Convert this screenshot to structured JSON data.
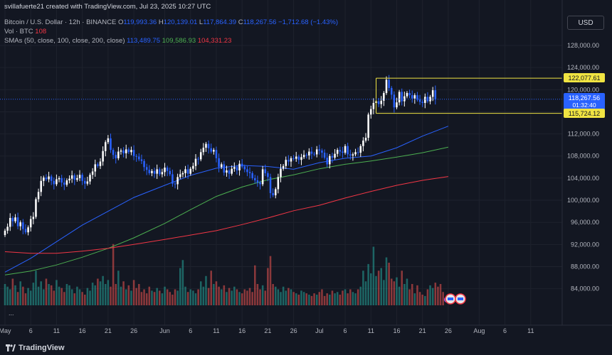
{
  "header": {
    "created_by": "svillafuerte21 created with TradingView.com, Jul 23, 2025 10:27 UTC",
    "symbol": "Bitcoin / U.S. Dollar · 12h · BINANCE",
    "ohlc": {
      "o_label": "O",
      "o": "119,993.36",
      "h_label": "H",
      "h": "120,139.01",
      "l_label": "L",
      "l": "117,864.39",
      "c_label": "C",
      "c": "118,267.56",
      "change": "−1,712.68 (−1.43%)"
    },
    "volume": {
      "label": "Vol · BTC",
      "value": "108"
    },
    "smas": {
      "label": "SMAs (50, close, 100, close, 200, close)",
      "sma50": "113,489.75",
      "sma100": "109,586.93",
      "sma200": "104,331.23"
    }
  },
  "currency_button": "USD",
  "collapse_dots": "...",
  "branding": "TradingView",
  "price_labels": {
    "level_high": "122,077.61",
    "current": "118,267.56",
    "countdown": "01:32:40",
    "level_low": "115,724.12"
  },
  "colors": {
    "background": "#131722",
    "up": "#ffffff",
    "down": "#2962ff",
    "sma50": "#2962ff",
    "sma100": "#4caf50",
    "sma200": "#f23645",
    "level": "#f0e442",
    "vol_up": "#26a69a",
    "vol_down": "#ef5350"
  },
  "chart_data": {
    "type": "candlestick",
    "ylim": [
      80000,
      130000
    ],
    "y_ticks": [
      84000,
      88000,
      92000,
      96000,
      100000,
      104000,
      108000,
      112000,
      116000,
      120000,
      124000,
      128000
    ],
    "y_tick_labels": [
      "84,000.00",
      "88,000.00",
      "92,000.00",
      "96,000.00",
      "100,000.00",
      "104,000.00",
      "108,000.00",
      "112,000.00",
      "116,000.00",
      "120,000.00",
      "124,000.00",
      "128,000.00"
    ],
    "x_tick_labels": [
      "May",
      "6",
      "11",
      "16",
      "21",
      "26",
      "Jun",
      "6",
      "11",
      "16",
      "21",
      "26",
      "Jul",
      "6",
      "11",
      "16",
      "21",
      "26",
      "Aug",
      "6",
      "11"
    ],
    "x_tick_days": [
      0,
      5,
      10,
      15,
      20,
      25,
      31,
      36,
      41,
      46,
      51,
      56,
      61,
      66,
      71,
      76,
      81,
      86,
      92,
      97,
      102
    ],
    "day_range": [
      0,
      107
    ],
    "levels": [
      122077.61,
      115724.12
    ],
    "level_range_days": [
      72,
      82
    ],
    "candles": {
      "day_start": 0,
      "step_days": 0.5,
      "closes": [
        94500,
        95200,
        96800,
        96200,
        96900,
        95300,
        96000,
        94800,
        94200,
        95100,
        96600,
        97000,
        100200,
        101500,
        103500,
        104100,
        103800,
        104300,
        103500,
        102900,
        103800,
        104000,
        103200,
        102800,
        103600,
        103900,
        104500,
        103700,
        104000,
        104600,
        103500,
        103000,
        103400,
        104600,
        105200,
        106500,
        106200,
        107000,
        108900,
        110500,
        111200,
        109100,
        108200,
        107600,
        108800,
        109000,
        108500,
        109200,
        108700,
        109100,
        108000,
        107900,
        107400,
        107100,
        106000,
        105500,
        104900,
        105300,
        104800,
        105600,
        104700,
        105100,
        105900,
        105300,
        104700,
        103000,
        102900,
        104200,
        104700,
        104900,
        105600,
        104800,
        105700,
        106200,
        107500,
        107400,
        108700,
        109500,
        110200,
        109400,
        108800,
        109100,
        107600,
        106000,
        106500,
        105000,
        105400,
        104800,
        105700,
        106000,
        105400,
        106600,
        106100,
        105600,
        105100,
        104900,
        104000,
        103600,
        103200,
        102900,
        105600,
        104900,
        104200,
        101300,
        100900,
        102000,
        104200,
        105700,
        106200,
        107300,
        107000,
        107600,
        107500,
        107900,
        107300,
        107800,
        108200,
        108100,
        108800,
        108400,
        108300,
        109200,
        109000,
        108600,
        107700,
        106500,
        108000,
        107700,
        108400,
        109100,
        108800,
        108600,
        109800,
        108300,
        108100,
        108300,
        108700,
        108600,
        109800,
        110800,
        111300,
        115500,
        116500,
        117600,
        117900,
        117400,
        118000,
        119400,
        121800,
        120300,
        119100,
        116800,
        117700,
        119600,
        117900,
        118800,
        119400,
        119000,
        118400,
        119000,
        118200,
        117800,
        117600,
        118700,
        117900,
        118700,
        119900,
        118268
      ]
    },
    "sma50": [
      [
        0,
        87000
      ],
      [
        5,
        89500
      ],
      [
        10,
        92500
      ],
      [
        15,
        95500
      ],
      [
        20,
        98000
      ],
      [
        25,
        100500
      ],
      [
        31,
        102700
      ],
      [
        36,
        104500
      ],
      [
        41,
        105800
      ],
      [
        46,
        106300
      ],
      [
        51,
        106100
      ],
      [
        56,
        105600
      ],
      [
        61,
        106800
      ],
      [
        66,
        107600
      ],
      [
        71,
        108000
      ],
      [
        76,
        109500
      ],
      [
        81,
        111600
      ],
      [
        86,
        113400
      ]
    ],
    "sma100": [
      [
        0,
        86500
      ],
      [
        5,
        87200
      ],
      [
        10,
        88300
      ],
      [
        15,
        89700
      ],
      [
        20,
        91300
      ],
      [
        25,
        93200
      ],
      [
        31,
        95800
      ],
      [
        36,
        98300
      ],
      [
        41,
        100700
      ],
      [
        46,
        102400
      ],
      [
        51,
        103700
      ],
      [
        56,
        104600
      ],
      [
        61,
        105700
      ],
      [
        66,
        106500
      ],
      [
        71,
        107100
      ],
      [
        76,
        107800
      ],
      [
        81,
        108600
      ],
      [
        86,
        109600
      ]
    ],
    "sma200": [
      [
        0,
        90700
      ],
      [
        5,
        90400
      ],
      [
        10,
        90400
      ],
      [
        15,
        90800
      ],
      [
        20,
        91300
      ],
      [
        25,
        92000
      ],
      [
        31,
        92900
      ],
      [
        36,
        93700
      ],
      [
        41,
        94500
      ],
      [
        46,
        95600
      ],
      [
        51,
        96800
      ],
      [
        56,
        98100
      ],
      [
        61,
        99100
      ],
      [
        66,
        100400
      ],
      [
        71,
        101600
      ],
      [
        76,
        102700
      ],
      [
        81,
        103600
      ],
      [
        86,
        104300
      ]
    ],
    "volume": {
      "day_start": 0,
      "step_days": 0.5,
      "values": [
        16,
        14,
        12,
        20,
        15,
        10,
        18,
        14,
        9,
        13,
        11,
        17,
        26,
        14,
        18,
        12,
        20,
        16,
        15,
        11,
        19,
        14,
        13,
        10,
        16,
        15,
        12,
        9,
        14,
        12,
        10,
        8,
        13,
        11,
        17,
        15,
        20,
        18,
        22,
        16,
        19,
        14,
        46,
        16,
        26,
        14,
        18,
        12,
        15,
        11,
        19,
        13,
        16,
        10,
        12,
        9,
        14,
        11,
        10,
        13,
        11,
        9,
        14,
        12,
        10,
        8,
        12,
        11,
        28,
        34,
        14,
        10,
        12,
        11,
        9,
        12,
        18,
        14,
        22,
        13,
        26,
        16,
        18,
        14,
        12,
        15,
        10,
        13,
        11,
        14,
        12,
        10,
        9,
        12,
        11,
        13,
        10,
        30,
        16,
        12,
        15,
        11,
        28,
        37,
        16,
        14,
        12,
        10,
        14,
        11,
        13,
        12,
        10,
        9,
        8,
        11,
        10,
        9,
        8,
        7,
        9,
        8,
        10,
        12,
        7,
        9,
        8,
        11,
        9,
        10,
        8,
        11,
        12,
        9,
        12,
        10,
        9,
        12,
        14,
        26,
        18,
        31,
        24,
        44,
        22,
        26,
        28,
        19,
        36,
        32,
        20,
        18,
        21,
        14,
        26,
        16,
        20,
        12,
        16,
        9,
        15,
        10,
        8,
        7,
        12,
        15,
        13,
        17,
        14,
        16,
        10
      ]
    },
    "vol_max_units": 48
  }
}
